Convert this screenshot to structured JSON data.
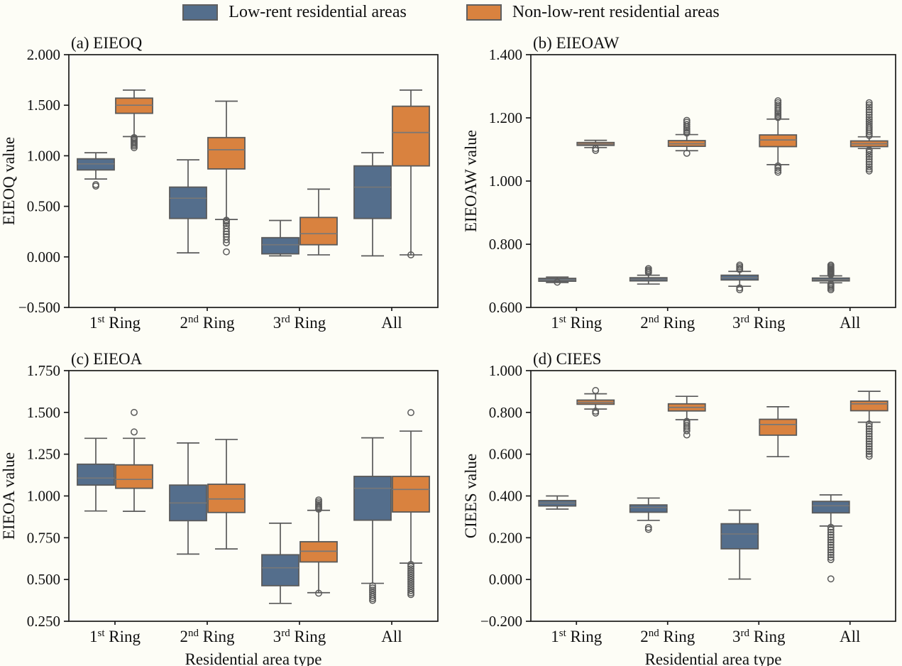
{
  "legend": {
    "items": [
      {
        "label": "Low-rent residential areas",
        "color": "#546e8c"
      },
      {
        "label": "Non-low-rent residential areas",
        "color": "#d9823f"
      }
    ]
  },
  "styles": {
    "background": "#fdfdf6",
    "axis_color": "#1a1a1a",
    "box_border": "#5a5a5a",
    "median_color": "#777777",
    "low_fill": "#546e8c",
    "non_fill": "#d9823f"
  },
  "chart_data": [
    {
      "id": "a",
      "type": "box",
      "title": "(a) EIEOQ",
      "ylabel": "EIEOQ value",
      "xlabel": "",
      "ylim": [
        -0.5,
        2.0
      ],
      "yticks": [
        2.0,
        1.5,
        1.0,
        0.5,
        0.0,
        -0.5
      ],
      "ytick_labels": [
        "2.000",
        "1.500",
        "1.000",
        "0.500",
        "0.000",
        "−0.500"
      ],
      "categories": [
        {
          "base": "1",
          "sup": "st",
          "rest": " Ring"
        },
        {
          "base": "2",
          "sup": "nd",
          "rest": " Ring"
        },
        {
          "base": "3",
          "sup": "rd",
          "rest": " Ring"
        },
        {
          "base": "All",
          "sup": "",
          "rest": ""
        }
      ],
      "series": [
        {
          "name": "Low-rent residential areas",
          "key": "low",
          "boxes": [
            {
              "whislo": 0.77,
              "q1": 0.86,
              "med": 0.92,
              "q3": 0.97,
              "whishi": 1.03,
              "outliers": [
                0.7,
                0.715
              ]
            },
            {
              "whislo": 0.04,
              "q1": 0.38,
              "med": 0.58,
              "q3": 0.69,
              "whishi": 0.96,
              "outliers": []
            },
            {
              "whislo": 0.01,
              "q1": 0.03,
              "med": 0.12,
              "q3": 0.19,
              "whishi": 0.36,
              "outliers": []
            },
            {
              "whislo": 0.01,
              "q1": 0.38,
              "med": 0.69,
              "q3": 0.9,
              "whishi": 1.03,
              "outliers": []
            }
          ]
        },
        {
          "name": "Non-low-rent residential areas",
          "key": "non",
          "boxes": [
            {
              "whislo": 1.19,
              "q1": 1.42,
              "med": 1.5,
              "q3": 1.57,
              "whishi": 1.65,
              "outliers": [
                1.08,
                1.097,
                1.112,
                1.126,
                1.14,
                1.155,
                1.168,
                1.18
              ]
            },
            {
              "whislo": 0.37,
              "q1": 0.87,
              "med": 1.06,
              "q3": 1.18,
              "whishi": 1.54,
              "outliers": [
                0.05,
                0.14,
                0.17,
                0.2,
                0.225,
                0.25,
                0.28,
                0.31,
                0.33,
                0.35,
                0.362
              ]
            },
            {
              "whislo": 0.02,
              "q1": 0.12,
              "med": 0.23,
              "q3": 0.39,
              "whishi": 0.67,
              "outliers": []
            },
            {
              "whislo": 0.02,
              "q1": 0.9,
              "med": 1.23,
              "q3": 1.49,
              "whishi": 1.65,
              "outliers": [
                0.02
              ]
            }
          ]
        }
      ]
    },
    {
      "id": "b",
      "type": "box",
      "title": "(b) EIEOAW",
      "ylabel": "EIEOAW value",
      "xlabel": "",
      "ylim": [
        0.6,
        1.4
      ],
      "yticks": [
        1.4,
        1.2,
        1.0,
        0.8,
        0.6
      ],
      "ytick_labels": [
        "1.400",
        "1.200",
        "1.000",
        "0.800",
        "0.600"
      ],
      "categories": [
        {
          "base": "1",
          "sup": "st",
          "rest": " Ring"
        },
        {
          "base": "2",
          "sup": "nd",
          "rest": " Ring"
        },
        {
          "base": "3",
          "sup": "rd",
          "rest": " Ring"
        },
        {
          "base": "All",
          "sup": "",
          "rest": ""
        }
      ],
      "series": [
        {
          "name": "Low-rent residential areas",
          "key": "low",
          "boxes": [
            {
              "whislo": 0.679,
              "q1": 0.683,
              "med": 0.687,
              "q3": 0.692,
              "whishi": 0.696,
              "outliers": [
                0.68
              ]
            },
            {
              "whislo": 0.674,
              "q1": 0.684,
              "med": 0.689,
              "q3": 0.694,
              "whishi": 0.702,
              "outliers": [
                0.71,
                0.714,
                0.718,
                0.723
              ]
            },
            {
              "whislo": 0.667,
              "q1": 0.687,
              "med": 0.694,
              "q3": 0.702,
              "whishi": 0.714,
              "outliers": [
                0.72,
                0.724,
                0.729,
                0.734,
                0.662,
                0.656
              ]
            },
            {
              "whislo": 0.678,
              "q1": 0.684,
              "med": 0.688,
              "q3": 0.693,
              "whishi": 0.7,
              "outliers": [
                0.704,
                0.707,
                0.71,
                0.713,
                0.716,
                0.719,
                0.722,
                0.726,
                0.73,
                0.734,
                0.674,
                0.67,
                0.666,
                0.661,
                0.656
              ]
            }
          ]
        },
        {
          "name": "Non-low-rent residential areas",
          "key": "non",
          "boxes": [
            {
              "whislo": 1.106,
              "q1": 1.113,
              "med": 1.117,
              "q3": 1.122,
              "whishi": 1.129,
              "outliers": [
                1.097,
                1.103
              ]
            },
            {
              "whislo": 1.096,
              "q1": 1.11,
              "med": 1.118,
              "q3": 1.128,
              "whishi": 1.147,
              "outliers": [
                1.152,
                1.157,
                1.162,
                1.167,
                1.173,
                1.179,
                1.186,
                1.192,
                1.088
              ]
            },
            {
              "whislo": 1.052,
              "q1": 1.109,
              "med": 1.13,
              "q3": 1.146,
              "whishi": 1.196,
              "outliers": [
                1.201,
                1.206,
                1.211,
                1.216,
                1.222,
                1.228,
                1.234,
                1.241,
                1.248,
                1.254,
                1.048,
                1.041,
                1.034,
                1.028
              ]
            },
            {
              "whislo": 1.103,
              "q1": 1.109,
              "med": 1.118,
              "q3": 1.127,
              "whishi": 1.14,
              "outliers": [
                1.144,
                1.15,
                1.156,
                1.162,
                1.168,
                1.174,
                1.181,
                1.188,
                1.195,
                1.202,
                1.21,
                1.218,
                1.226,
                1.234,
                1.241,
                1.248,
                1.098,
                1.091,
                1.084,
                1.077,
                1.069,
                1.061,
                1.053,
                1.045,
                1.038,
                1.032
              ]
            }
          ]
        }
      ]
    },
    {
      "id": "c",
      "type": "box",
      "title": "(c) EIEOA",
      "ylabel": "EIEOA value",
      "xlabel": "Residential area type",
      "ylim": [
        0.25,
        1.75
      ],
      "yticks": [
        1.75,
        1.5,
        1.25,
        1.0,
        0.75,
        0.5,
        0.25
      ],
      "ytick_labels": [
        "1.750",
        "1.500",
        "1.250",
        "1.000",
        "0.750",
        "0.500",
        "0.250"
      ],
      "categories": [
        {
          "base": "1",
          "sup": "st",
          "rest": " Ring"
        },
        {
          "base": "2",
          "sup": "nd",
          "rest": " Ring"
        },
        {
          "base": "3",
          "sup": "rd",
          "rest": " Ring"
        },
        {
          "base": "All",
          "sup": "",
          "rest": ""
        }
      ],
      "series": [
        {
          "name": "Low-rent residential areas",
          "key": "low",
          "boxes": [
            {
              "whislo": 0.91,
              "q1": 1.065,
              "med": 1.107,
              "q3": 1.19,
              "whishi": 1.345,
              "outliers": []
            },
            {
              "whislo": 0.652,
              "q1": 0.852,
              "med": 0.958,
              "q3": 1.065,
              "whishi": 1.317,
              "outliers": []
            },
            {
              "whislo": 0.357,
              "q1": 0.463,
              "med": 0.57,
              "q3": 0.648,
              "whishi": 0.837,
              "outliers": []
            },
            {
              "whislo": 0.477,
              "q1": 0.855,
              "med": 1.046,
              "q3": 1.117,
              "whishi": 1.348,
              "outliers": [
                0.462,
                0.449,
                0.436,
                0.423,
                0.41,
                0.398,
                0.386,
                0.375
              ]
            }
          ]
        },
        {
          "name": "Non-low-rent residential areas",
          "key": "non",
          "boxes": [
            {
              "whislo": 0.908,
              "q1": 1.046,
              "med": 1.099,
              "q3": 1.186,
              "whishi": 1.345,
              "outliers": [
                1.383,
                1.5
              ]
            },
            {
              "whislo": 0.683,
              "q1": 0.901,
              "med": 0.982,
              "q3": 1.07,
              "whishi": 1.338,
              "outliers": []
            },
            {
              "whislo": 0.421,
              "q1": 0.605,
              "med": 0.669,
              "q3": 0.726,
              "whishi": 0.914,
              "outliers": [
                0.921,
                0.929,
                0.937,
                0.946,
                0.955,
                0.965,
                0.976,
                0.418
              ]
            },
            {
              "whislo": 0.598,
              "q1": 0.904,
              "med": 1.039,
              "q3": 1.117,
              "whishi": 1.388,
              "outliers": [
                1.499,
                0.59,
                0.577,
                0.564,
                0.551,
                0.538,
                0.525,
                0.512,
                0.499,
                0.486,
                0.473,
                0.46,
                0.447,
                0.434,
                0.421,
                0.41
              ]
            }
          ]
        }
      ]
    },
    {
      "id": "d",
      "type": "box",
      "title": "(d) CIEES",
      "ylabel": "CIEES value",
      "xlabel": "Residential area type",
      "ylim": [
        -0.2,
        1.0
      ],
      "yticks": [
        1.0,
        0.8,
        0.6,
        0.4,
        0.2,
        0.0,
        -0.2
      ],
      "ytick_labels": [
        "1.000",
        "0.800",
        "0.600",
        "0.400",
        "0.200",
        "0.000",
        "−0.200"
      ],
      "categories": [
        {
          "base": "1",
          "sup": "st",
          "rest": " Ring"
        },
        {
          "base": "2",
          "sup": "nd",
          "rest": " Ring"
        },
        {
          "base": "3",
          "sup": "rd",
          "rest": " Ring"
        },
        {
          "base": "All",
          "sup": "",
          "rest": ""
        }
      ],
      "series": [
        {
          "name": "Low-rent residential areas",
          "key": "low",
          "boxes": [
            {
              "whislo": 0.337,
              "q1": 0.352,
              "med": 0.366,
              "q3": 0.378,
              "whishi": 0.4,
              "outliers": []
            },
            {
              "whislo": 0.283,
              "q1": 0.322,
              "med": 0.345,
              "q3": 0.357,
              "whishi": 0.39,
              "outliers": [
                0.249,
                0.24
              ]
            },
            {
              "whislo": 0.002,
              "q1": 0.147,
              "med": 0.218,
              "q3": 0.267,
              "whishi": 0.332,
              "outliers": []
            },
            {
              "whislo": 0.256,
              "q1": 0.319,
              "med": 0.353,
              "q3": 0.374,
              "whishi": 0.405,
              "outliers": [
                0.25,
                0.238,
                0.226,
                0.214,
                0.202,
                0.19,
                0.178,
                0.166,
                0.154,
                0.142,
                0.13,
                0.118,
                0.106,
                0.095,
                0.003
              ]
            }
          ]
        },
        {
          "name": "Non-low-rent residential areas",
          "key": "non",
          "boxes": [
            {
              "whislo": 0.816,
              "q1": 0.839,
              "med": 0.848,
              "q3": 0.859,
              "whishi": 0.889,
              "outliers": [
                0.905,
                0.806,
                0.797
              ]
            },
            {
              "whislo": 0.765,
              "q1": 0.807,
              "med": 0.824,
              "q3": 0.841,
              "whishi": 0.877,
              "outliers": [
                0.757,
                0.748,
                0.739,
                0.73,
                0.722,
                0.712,
                0.692
              ]
            },
            {
              "whislo": 0.588,
              "q1": 0.691,
              "med": 0.742,
              "q3": 0.767,
              "whishi": 0.827,
              "outliers": []
            },
            {
              "whislo": 0.753,
              "q1": 0.808,
              "med": 0.841,
              "q3": 0.854,
              "whishi": 0.901,
              "outliers": [
                0.745,
                0.733,
                0.721,
                0.709,
                0.697,
                0.685,
                0.673,
                0.661,
                0.649,
                0.637,
                0.625,
                0.613,
                0.601,
                0.59
              ]
            }
          ]
        }
      ]
    }
  ]
}
